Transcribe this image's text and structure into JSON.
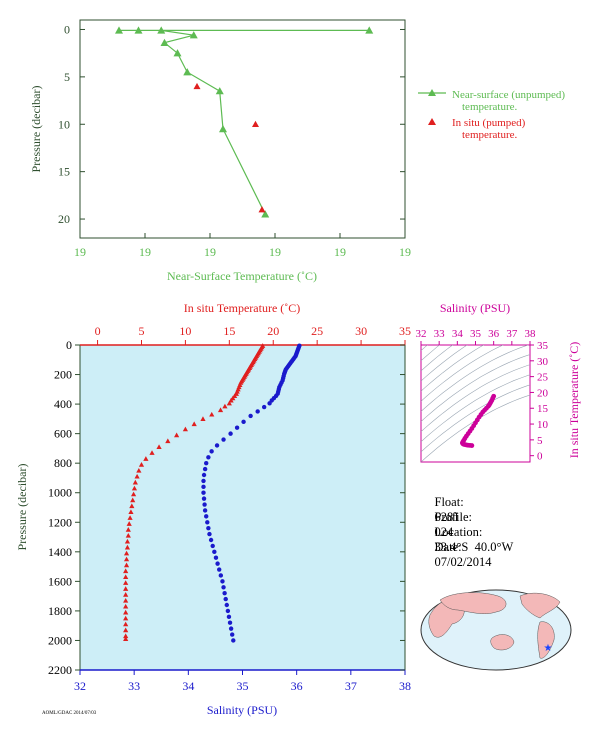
{
  "colors": {
    "near_surface": "#5dbb52",
    "insitu": "#e01f1f",
    "salinity": "#1a1acc",
    "salinity_ts": "#cc0099",
    "panel_bg": "#cdeef7",
    "axis_dark": "#2f4f2f",
    "land": "#f3b8b8",
    "ocean": "#dff2fa"
  },
  "info": {
    "float_label": "Float:",
    "float_value": "6281",
    "profile_label": "Profile:",
    "profile_value": "024",
    "location_label": "Location:",
    "location_value": "33.4°S  40.0°W",
    "date_label": "Date:",
    "date_value": "07/02/2014"
  },
  "footer_stamp": "AOML/GDAC  2014/07/03",
  "chart_data": [
    {
      "type": "line",
      "id": "near-surface",
      "xlabel": "Near-Surface Temperature (˚C)",
      "ylabel": "Pressure (decibar)",
      "xlim": [
        18.5,
        19.5
      ],
      "ylim": [
        22,
        -1
      ],
      "x_ticks": [
        18.5,
        18.7,
        18.9,
        19.1,
        19.3,
        19.5
      ],
      "x_tick_labels": [
        "19",
        "19",
        "19",
        "19",
        "19",
        "19"
      ],
      "y_ticks": [
        0,
        5,
        10,
        15,
        20
      ],
      "y_tick_labels": [
        "0",
        "5",
        "10",
        "15",
        "20"
      ],
      "legend_position": "right",
      "series": [
        {
          "name": "Near-surface (unpumped) temperature.",
          "marker": "triangle",
          "points": [
            [
              19.39,
              0.1
            ],
            [
              18.62,
              0.1
            ],
            [
              18.68,
              0.1
            ],
            [
              18.75,
              0.1
            ],
            [
              18.85,
              0.6
            ],
            [
              18.76,
              1.4
            ],
            [
              18.8,
              2.5
            ],
            [
              18.83,
              4.5
            ],
            [
              18.93,
              6.5
            ],
            [
              18.94,
              10.5
            ],
            [
              19.07,
              19.5
            ]
          ]
        },
        {
          "name": "In situ (pumped) temperature.",
          "marker": "triangle",
          "points": [
            [
              18.86,
              6.0
            ],
            [
              19.04,
              10.0
            ],
            [
              19.06,
              19.0
            ]
          ]
        }
      ]
    },
    {
      "type": "scatter",
      "id": "profile",
      "top_xlabel": "In situ Temperature (˚C)",
      "bottom_xlabel": "Salinity (PSU)",
      "ylabel": "Pressure (decibar)",
      "temp_xlim": [
        -2,
        35
      ],
      "temp_ticks": [
        0,
        5,
        10,
        15,
        20,
        25,
        30,
        35
      ],
      "sal_xlim": [
        32,
        38
      ],
      "sal_ticks": [
        32,
        33,
        34,
        35,
        36,
        37,
        38
      ],
      "ylim": [
        2200,
        0
      ],
      "y_ticks": [
        0,
        200,
        400,
        600,
        800,
        1000,
        1200,
        1400,
        1600,
        1800,
        2000,
        2200
      ],
      "temperature_profile": [
        [
          18.8,
          5
        ],
        [
          18.7,
          15
        ],
        [
          18.6,
          25
        ],
        [
          18.5,
          35
        ],
        [
          18.4,
          45
        ],
        [
          18.3,
          55
        ],
        [
          18.2,
          65
        ],
        [
          18.1,
          75
        ],
        [
          18.0,
          85
        ],
        [
          17.9,
          95
        ],
        [
          17.8,
          105
        ],
        [
          17.7,
          115
        ],
        [
          17.6,
          125
        ],
        [
          17.5,
          135
        ],
        [
          17.4,
          145
        ],
        [
          17.3,
          155
        ],
        [
          17.2,
          165
        ],
        [
          17.1,
          175
        ],
        [
          17.0,
          185
        ],
        [
          16.9,
          195
        ],
        [
          16.8,
          205
        ],
        [
          16.7,
          215
        ],
        [
          16.6,
          225
        ],
        [
          16.5,
          235
        ],
        [
          16.4,
          245
        ],
        [
          16.3,
          255
        ],
        [
          16.2,
          270
        ],
        [
          16.1,
          285
        ],
        [
          16.0,
          300
        ],
        [
          15.9,
          315
        ],
        [
          15.8,
          330
        ],
        [
          15.6,
          345
        ],
        [
          15.4,
          360
        ],
        [
          15.2,
          375
        ],
        [
          15.0,
          395
        ],
        [
          14.5,
          415
        ],
        [
          14.0,
          440
        ],
        [
          13.0,
          470
        ],
        [
          12.0,
          500
        ],
        [
          11.0,
          535
        ],
        [
          10.0,
          570
        ],
        [
          9.0,
          610
        ],
        [
          8.0,
          650
        ],
        [
          7.0,
          690
        ],
        [
          6.2,
          730
        ],
        [
          5.5,
          770
        ],
        [
          5.0,
          810
        ],
        [
          4.7,
          850
        ],
        [
          4.5,
          890
        ],
        [
          4.3,
          930
        ],
        [
          4.2,
          970
        ],
        [
          4.1,
          1010
        ],
        [
          4.0,
          1050
        ],
        [
          3.9,
          1090
        ],
        [
          3.8,
          1130
        ],
        [
          3.7,
          1170
        ],
        [
          3.6,
          1210
        ],
        [
          3.5,
          1250
        ],
        [
          3.5,
          1290
        ],
        [
          3.4,
          1330
        ],
        [
          3.4,
          1370
        ],
        [
          3.3,
          1410
        ],
        [
          3.3,
          1450
        ],
        [
          3.3,
          1490
        ],
        [
          3.2,
          1530
        ],
        [
          3.2,
          1570
        ],
        [
          3.2,
          1610
        ],
        [
          3.2,
          1650
        ],
        [
          3.2,
          1690
        ],
        [
          3.2,
          1730
        ],
        [
          3.2,
          1770
        ],
        [
          3.2,
          1810
        ],
        [
          3.2,
          1850
        ],
        [
          3.2,
          1890
        ],
        [
          3.2,
          1930
        ],
        [
          3.2,
          1970
        ],
        [
          3.2,
          1990
        ]
      ],
      "salinity_profile": [
        [
          36.05,
          5
        ],
        [
          36.04,
          15
        ],
        [
          36.03,
          25
        ],
        [
          36.02,
          35
        ],
        [
          36.01,
          45
        ],
        [
          36.0,
          55
        ],
        [
          35.99,
          65
        ],
        [
          35.98,
          75
        ],
        [
          35.96,
          85
        ],
        [
          35.94,
          95
        ],
        [
          35.92,
          105
        ],
        [
          35.9,
          115
        ],
        [
          35.88,
          125
        ],
        [
          35.86,
          135
        ],
        [
          35.84,
          145
        ],
        [
          35.82,
          155
        ],
        [
          35.8,
          165
        ],
        [
          35.79,
          175
        ],
        [
          35.78,
          185
        ],
        [
          35.77,
          195
        ],
        [
          35.76,
          210
        ],
        [
          35.75,
          225
        ],
        [
          35.74,
          240
        ],
        [
          35.72,
          255
        ],
        [
          35.7,
          270
        ],
        [
          35.68,
          285
        ],
        [
          35.67,
          300
        ],
        [
          35.66,
          315
        ],
        [
          35.65,
          330
        ],
        [
          35.62,
          345
        ],
        [
          35.58,
          360
        ],
        [
          35.54,
          375
        ],
        [
          35.5,
          395
        ],
        [
          35.4,
          420
        ],
        [
          35.28,
          450
        ],
        [
          35.15,
          480
        ],
        [
          35.02,
          520
        ],
        [
          34.9,
          560
        ],
        [
          34.78,
          600
        ],
        [
          34.65,
          640
        ],
        [
          34.53,
          680
        ],
        [
          34.43,
          720
        ],
        [
          34.37,
          760
        ],
        [
          34.33,
          800
        ],
        [
          34.31,
          840
        ],
        [
          34.29,
          880
        ],
        [
          34.28,
          920
        ],
        [
          34.28,
          960
        ],
        [
          34.28,
          1000
        ],
        [
          34.29,
          1040
        ],
        [
          34.3,
          1080
        ],
        [
          34.31,
          1120
        ],
        [
          34.33,
          1160
        ],
        [
          34.35,
          1200
        ],
        [
          34.37,
          1240
        ],
        [
          34.39,
          1280
        ],
        [
          34.42,
          1320
        ],
        [
          34.45,
          1360
        ],
        [
          34.48,
          1400
        ],
        [
          34.51,
          1440
        ],
        [
          34.54,
          1480
        ],
        [
          34.57,
          1520
        ],
        [
          34.6,
          1560
        ],
        [
          34.63,
          1600
        ],
        [
          34.65,
          1640
        ],
        [
          34.67,
          1680
        ],
        [
          34.69,
          1720
        ],
        [
          34.71,
          1760
        ],
        [
          34.73,
          1800
        ],
        [
          34.75,
          1840
        ],
        [
          34.77,
          1880
        ],
        [
          34.79,
          1920
        ],
        [
          34.81,
          1960
        ],
        [
          34.83,
          2000
        ]
      ]
    },
    {
      "type": "scatter",
      "id": "ts-diagram",
      "xlabel": "Salinity (PSU)",
      "ylabel": "In situ Temperature (˚C)",
      "xlim": [
        32,
        38
      ],
      "ylim": [
        -2,
        35
      ],
      "x_ticks": [
        32,
        33,
        34,
        35,
        36,
        37,
        38
      ],
      "y_ticks": [
        0,
        5,
        10,
        15,
        20,
        25,
        30,
        35
      ],
      "points": [
        [
          36.0,
          18.8
        ],
        [
          35.95,
          18.2
        ],
        [
          35.9,
          17.5
        ],
        [
          35.85,
          17.0
        ],
        [
          35.8,
          16.5
        ],
        [
          35.75,
          16.0
        ],
        [
          35.7,
          15.6
        ],
        [
          35.6,
          15.0
        ],
        [
          35.5,
          14.4
        ],
        [
          35.4,
          13.8
        ],
        [
          35.3,
          13.0
        ],
        [
          35.2,
          12.2
        ],
        [
          35.1,
          11.3
        ],
        [
          35.0,
          10.4
        ],
        [
          34.9,
          9.5
        ],
        [
          34.8,
          8.6
        ],
        [
          34.7,
          7.8
        ],
        [
          34.6,
          7.0
        ],
        [
          34.5,
          6.2
        ],
        [
          34.42,
          5.5
        ],
        [
          34.36,
          4.9
        ],
        [
          34.32,
          4.5
        ],
        [
          34.29,
          4.2
        ],
        [
          34.28,
          4.0
        ],
        [
          34.3,
          3.8
        ],
        [
          34.35,
          3.6
        ],
        [
          34.42,
          3.5
        ],
        [
          34.5,
          3.4
        ],
        [
          34.6,
          3.3
        ],
        [
          34.7,
          3.25
        ],
        [
          34.8,
          3.2
        ]
      ]
    }
  ]
}
